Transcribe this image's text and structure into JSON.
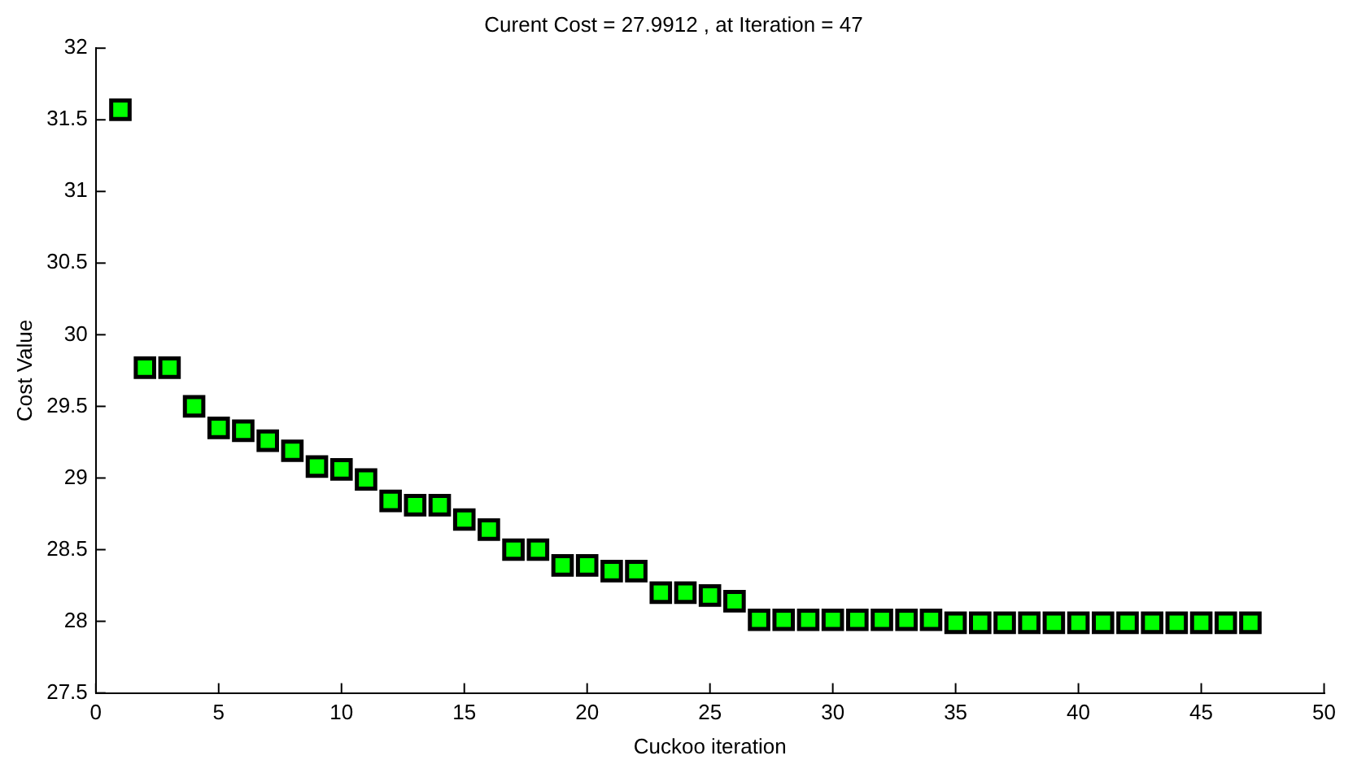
{
  "chart_data": {
    "type": "scatter",
    "title": "Curent Cost = 27.9912 , at Iteration = 47",
    "xlabel": "Cuckoo iteration",
    "ylabel": "Cost Value",
    "x": [
      1,
      2,
      3,
      4,
      5,
      6,
      7,
      8,
      9,
      10,
      11,
      12,
      13,
      14,
      15,
      16,
      17,
      18,
      19,
      20,
      21,
      22,
      23,
      24,
      25,
      26,
      27,
      28,
      29,
      30,
      31,
      32,
      33,
      34,
      35,
      36,
      37,
      38,
      39,
      40,
      41,
      42,
      43,
      44,
      45,
      46,
      47
    ],
    "series": [
      {
        "color": "#00ff00",
        "values": [
          31.57,
          29.77,
          29.77,
          29.5,
          29.35,
          29.33,
          29.26,
          29.19,
          29.08,
          29.06,
          28.99,
          28.84,
          28.81,
          28.81,
          28.71,
          28.64,
          28.5,
          28.5,
          28.39,
          28.39,
          28.35,
          28.35,
          28.2,
          28.2,
          28.18,
          28.14,
          28.01,
          28.01,
          28.01,
          28.01,
          28.01,
          28.01,
          28.01,
          28.01,
          27.99,
          27.99,
          27.99,
          27.99,
          27.99,
          27.99,
          27.99,
          27.99,
          27.99,
          27.99,
          27.99,
          27.99,
          27.99
        ]
      }
    ],
    "xlim": [
      0,
      50
    ],
    "xticks": [
      0,
      5,
      10,
      15,
      20,
      25,
      30,
      35,
      40,
      45,
      50
    ],
    "ylim": [
      27.5,
      32
    ],
    "yticks": [
      27.5,
      28,
      28.5,
      29,
      29.5,
      30,
      30.5,
      31,
      31.5,
      32
    ],
    "grid": false,
    "legend": false,
    "marker": "square"
  }
}
